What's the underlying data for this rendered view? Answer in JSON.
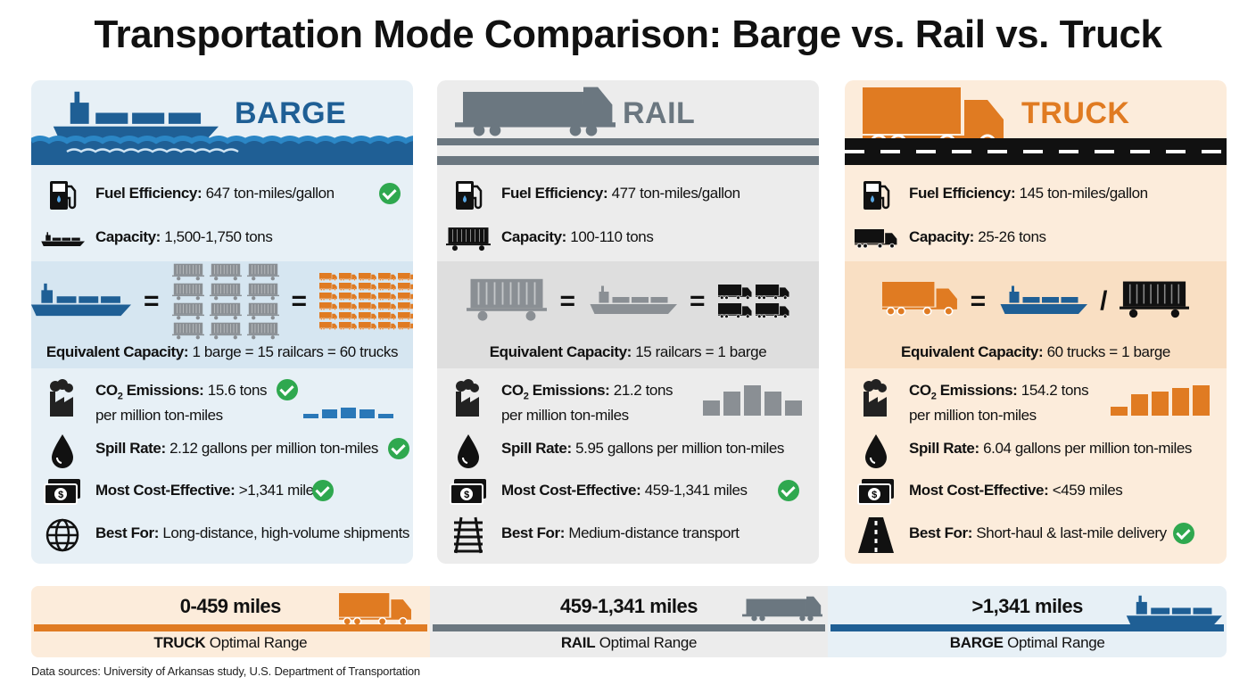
{
  "title": "Transportation Mode Comparison: Barge vs. Rail vs. Truck",
  "colors": {
    "barge": "#1f5f95",
    "rail": "#6b7780",
    "truck": "#e07b22",
    "check": "#2fa84f"
  },
  "panels": [
    {
      "id": "barge",
      "name": "BARGE",
      "color": "#1f5f95",
      "bg": "#e7f0f6",
      "band_bg": "#d6e6f1",
      "fuel": {
        "label": "Fuel Efficiency:",
        "value": "647 ton-miles/gallon",
        "check": true
      },
      "capacity": {
        "label": "Capacity:",
        "value": "1,500-1,750 tons"
      },
      "equivalent": {
        "label": "Equivalent Capacity:",
        "value": "1 barge = 15 railcars = 60 trucks",
        "signs": [
          "=",
          "="
        ]
      },
      "co2": {
        "label": "CO",
        "sub": "2",
        "label2": " Emissions:",
        "value": "15.6 tons",
        "value2": "per million ton-miles",
        "check": true,
        "relative_bars": [
          0.15,
          0.3,
          0.35,
          0.3,
          0.15
        ]
      },
      "spill": {
        "label": "Spill Rate:",
        "value": "2.12 gallons per million ton-miles",
        "check": true
      },
      "cost": {
        "label": "Most Cost-Effective:",
        "value": ">1,341 miles",
        "check": true
      },
      "best": {
        "label": "Best For:",
        "value": "Long-distance, high-volume shipments",
        "check": false,
        "icon": "globe-icon"
      }
    },
    {
      "id": "rail",
      "name": "RAIL",
      "color": "#6b7780",
      "bg": "#ececec",
      "band_bg": "#dedede",
      "fuel": {
        "label": "Fuel Efficiency:",
        "value": "477 ton-miles/gallon",
        "check": false
      },
      "capacity": {
        "label": "Capacity:",
        "value": "100-110 tons"
      },
      "equivalent": {
        "label": "Equivalent Capacity:",
        "value": "15 railcars = 1 barge",
        "signs": [
          "=",
          "="
        ]
      },
      "co2": {
        "label": "CO",
        "sub": "2",
        "label2": " Emissions:",
        "value": "21.2 tons",
        "value2": "per million ton-miles",
        "check": false,
        "relative_bars": [
          0.5,
          0.8,
          1,
          0.8,
          0.5
        ]
      },
      "spill": {
        "label": "Spill Rate:",
        "value": "5.95 gallons per million ton-miles",
        "check": false
      },
      "cost": {
        "label": "Most Cost-Effective:",
        "value": "459-1,341 miles",
        "check": true
      },
      "best": {
        "label": "Best For:",
        "value": "Medium-distance transport",
        "check": false,
        "icon": "railroad-track-icon"
      }
    },
    {
      "id": "truck",
      "name": "TRUCK",
      "color": "#e07b22",
      "bg": "#fcecdb",
      "band_bg": "#f9dfc3",
      "fuel": {
        "label": "Fuel Efficiency:",
        "value": "145 ton-miles/gallon",
        "check": false
      },
      "capacity": {
        "label": "Capacity:",
        "value": "25-26 tons"
      },
      "equivalent": {
        "label": "Equivalent Capacity:",
        "value": "60 trucks = 1 barge",
        "signs": [
          "=",
          "/"
        ]
      },
      "co2": {
        "label": "CO",
        "sub": "2",
        "label2": " Emissions:",
        "value": "154.2 tons",
        "value2": "per million ton-miles",
        "check": false,
        "relative_bars": [
          0.3,
          0.7,
          0.8,
          0.9,
          1
        ]
      },
      "spill": {
        "label": "Spill Rate:",
        "value": "6.04 gallons per million ton-miles",
        "check": false
      },
      "cost": {
        "label": "Most Cost-Effective:",
        "value": "<459 miles",
        "check": false
      },
      "best": {
        "label": "Best For:",
        "value": "Short-haul & last-mile delivery",
        "check": true,
        "icon": "road-icon"
      }
    }
  ],
  "ranges": [
    {
      "mode": "TRUCK",
      "suffix": " Optimal Range",
      "range": "0-459 miles",
      "color": "#e07b22",
      "bg": "#fcecdb",
      "icon": "truck-icon"
    },
    {
      "mode": "RAIL",
      "suffix": " Optimal Range",
      "range": "459-1,341 miles",
      "color": "#6b7780",
      "bg": "#ececec",
      "icon": "locomotive-icon"
    },
    {
      "mode": "BARGE",
      "suffix": " Optimal Range",
      "range": ">1,341 miles",
      "color": "#1f5f95",
      "bg": "#e7f0f6",
      "icon": "ship-icon"
    }
  ],
  "sources": "Data sources: University of Arkansas study, U.S. Department of Transportation"
}
